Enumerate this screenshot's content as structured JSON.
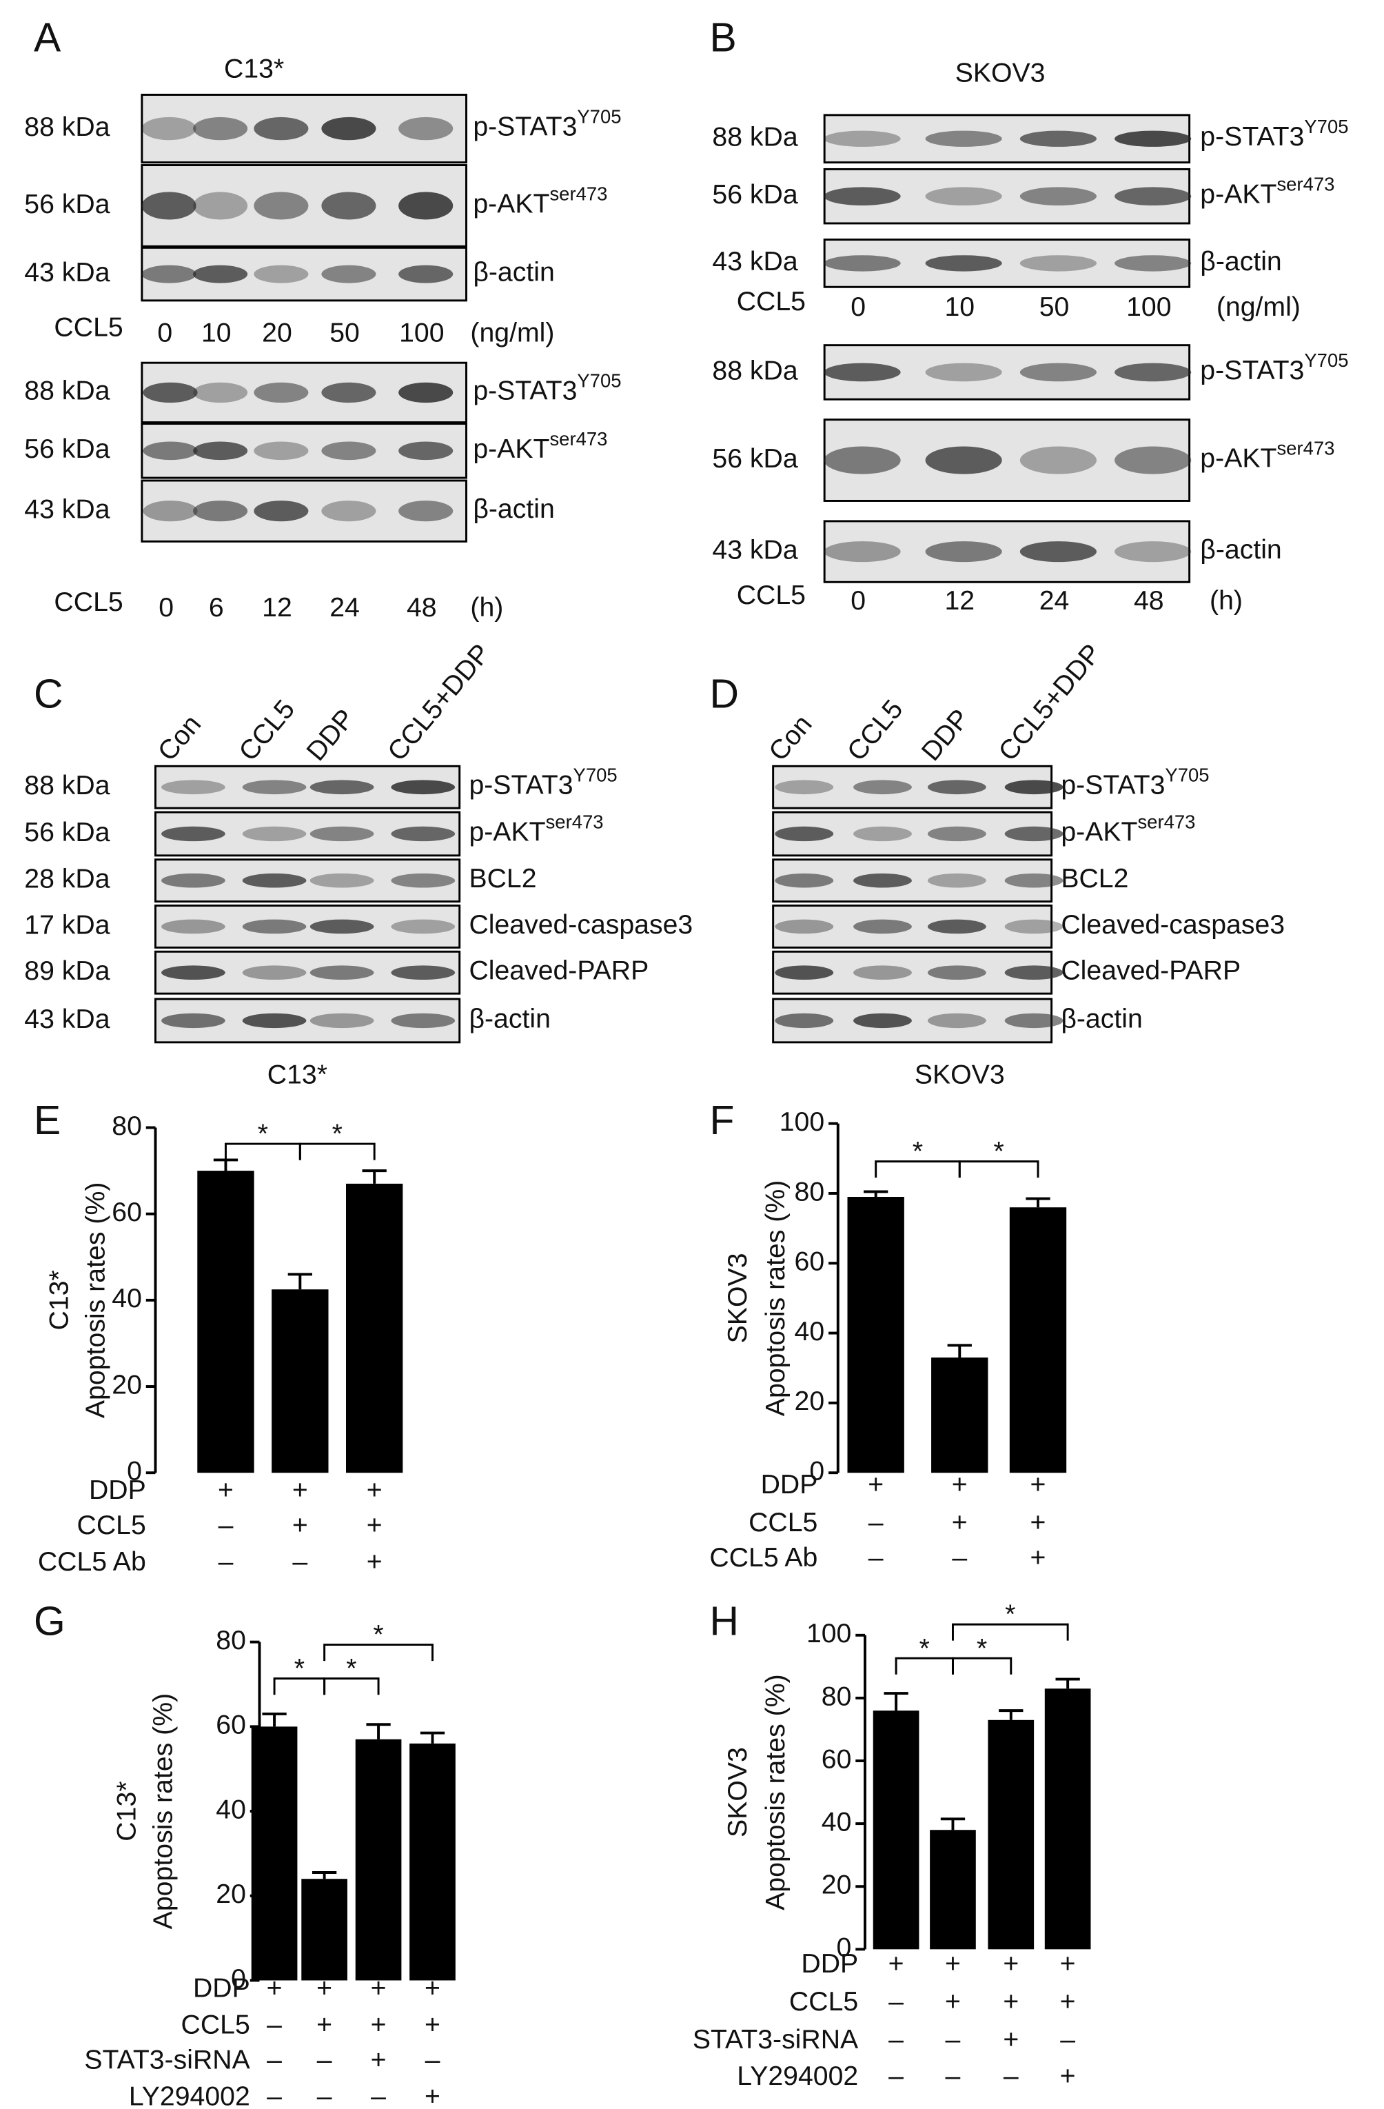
{
  "blots": [
    {
      "letter": "A",
      "title": "C13*",
      "groups": [
        {
          "rows": [
            {
              "kda": "88 kDa",
              "protein": "p-STAT3",
              "sup": "Y705"
            },
            {
              "kda": "56 kDa",
              "protein": "p-AKT",
              "sup": "ser473"
            },
            {
              "kda": "43 kDa",
              "protein": "β-actin"
            }
          ],
          "treatment": "CCL5",
          "lanes": [
            "0",
            "10",
            "20",
            "50",
            "100"
          ],
          "unit": "(ng/ml)"
        },
        {
          "rows": [
            {
              "kda": "88 kDa",
              "protein": "p-STAT3",
              "sup": "Y705"
            },
            {
              "kda": "56 kDa",
              "protein": "p-AKT",
              "sup": "ser473"
            },
            {
              "kda": "43 kDa",
              "protein": "β-actin"
            }
          ],
          "treatment": "CCL5",
          "lanes": [
            "0",
            "6",
            "12",
            "24",
            "48"
          ],
          "unit": "(h)"
        }
      ]
    },
    {
      "letter": "B",
      "title": "SKOV3",
      "groups": [
        {
          "rows": [
            {
              "kda": "88 kDa",
              "protein": "p-STAT3",
              "sup": "Y705"
            },
            {
              "kda": "56 kDa",
              "protein": "p-AKT",
              "sup": "ser473"
            },
            {
              "kda": "43 kDa",
              "protein": "β-actin"
            }
          ],
          "treatment": "CCL5",
          "lanes": [
            "0",
            "10",
            "50",
            "100"
          ],
          "unit": "(ng/ml)"
        },
        {
          "rows": [
            {
              "kda": "88 kDa",
              "protein": "p-STAT3",
              "sup": "Y705"
            },
            {
              "kda": "56 kDa",
              "protein": "p-AKT",
              "sup": "ser473"
            },
            {
              "kda": "43 kDa",
              "protein": "β-actin"
            }
          ],
          "treatment": "CCL5",
          "lanes": [
            "0",
            "12",
            "24",
            "48"
          ],
          "unit": "(h)"
        }
      ]
    },
    {
      "letter": "C",
      "groups": [
        {
          "rows": [
            {
              "kda": "88 kDa",
              "protein": "p-STAT3",
              "sup": "Y705"
            },
            {
              "kda": "56 kDa",
              "protein": "p-AKT",
              "sup": "ser473"
            },
            {
              "kda": "28 kDa",
              "protein": "BCL2"
            },
            {
              "kda": "17 kDa",
              "protein": "Cleaved-caspase3"
            },
            {
              "kda": "89 kDa",
              "protein": "Cleaved-PARP"
            },
            {
              "kda": "43 kDa",
              "protein": "β-actin"
            }
          ],
          "lanes": [
            "Con",
            "CCL5",
            "DDP",
            "CCL5+DDP"
          ]
        }
      ]
    },
    {
      "letter": "D",
      "groups": [
        {
          "rows": [
            {
              "protein": "p-STAT3",
              "sup": "Y705"
            },
            {
              "protein": "p-AKT",
              "sup": "ser473"
            },
            {
              "protein": "BCL2"
            },
            {
              "protein": "Cleaved-caspase3"
            },
            {
              "protein": "Cleaved-PARP"
            },
            {
              "protein": "β-actin"
            }
          ],
          "lanes": [
            "Con",
            "CCL5",
            "DDP",
            "CCL5+DDP"
          ]
        }
      ]
    }
  ],
  "chart_data": [
    {
      "type": "bar",
      "letter": "E",
      "title": "C13*",
      "ylabel": [
        "C13*",
        "Apoptosis rates (%)"
      ],
      "values": [
        70,
        42.5,
        67
      ],
      "errors": [
        2.5,
        3.5,
        3
      ],
      "color": "#000000",
      "ylim": [
        0,
        80
      ],
      "yticks": [
        0,
        20,
        40,
        60,
        80
      ],
      "treatments": [
        {
          "name": "DDP",
          "signs": [
            "+",
            "+",
            "+"
          ]
        },
        {
          "name": "CCL5",
          "signs": [
            "–",
            "+",
            "+"
          ]
        },
        {
          "name": "CCL5 Ab",
          "signs": [
            "–",
            "–",
            "+"
          ]
        }
      ],
      "significance": [
        "*",
        "*"
      ]
    },
    {
      "type": "bar",
      "letter": "F",
      "title": "SKOV3",
      "ylabel": [
        "SKOV3",
        "Apoptosis rates (%)"
      ],
      "values": [
        79,
        33,
        76
      ],
      "errors": [
        1.5,
        3.5,
        2.5
      ],
      "color": "#000000",
      "ylim": [
        0,
        100
      ],
      "yticks": [
        0,
        20,
        40,
        60,
        80,
        100
      ],
      "treatments": [
        {
          "name": "DDP",
          "signs": [
            "+",
            "+",
            "+"
          ]
        },
        {
          "name": "CCL5",
          "signs": [
            "–",
            "+",
            "+"
          ]
        },
        {
          "name": "CCL5 Ab",
          "signs": [
            "–",
            "–",
            "+"
          ]
        }
      ],
      "significance": [
        "*",
        "*"
      ]
    },
    {
      "type": "bar",
      "letter": "G",
      "ylabel": [
        "C13*",
        "Apoptosis rates (%)"
      ],
      "values": [
        60,
        24,
        57,
        56
      ],
      "errors": [
        3,
        1.5,
        3.5,
        2.5
      ],
      "color": "#000000",
      "ylim": [
        0,
        80
      ],
      "yticks": [
        0,
        20,
        40,
        60,
        80
      ],
      "treatments": [
        {
          "name": "DDP",
          "signs": [
            "+",
            "+",
            "+",
            "+"
          ]
        },
        {
          "name": "CCL5",
          "signs": [
            "–",
            "+",
            "+",
            "+"
          ]
        },
        {
          "name": "STAT3-siRNA",
          "signs": [
            "–",
            "–",
            "+",
            "–"
          ]
        },
        {
          "name": "LY294002",
          "signs": [
            "–",
            "–",
            "–",
            "+"
          ]
        }
      ],
      "significance": [
        "*",
        "*",
        "*"
      ]
    },
    {
      "type": "bar",
      "letter": "H",
      "ylabel": [
        "SKOV3",
        "Apoptosis rates (%)"
      ],
      "values": [
        76,
        38,
        73,
        83
      ],
      "errors": [
        5.5,
        3.5,
        3,
        3
      ],
      "color": "#000000",
      "ylim": [
        0,
        100
      ],
      "yticks": [
        0,
        20,
        40,
        60,
        80,
        100
      ],
      "treatments": [
        {
          "name": "DDP",
          "signs": [
            "+",
            "+",
            "+",
            "+"
          ]
        },
        {
          "name": "CCL5",
          "signs": [
            "–",
            "+",
            "+",
            "+"
          ]
        },
        {
          "name": "STAT3-siRNA",
          "signs": [
            "–",
            "–",
            "+",
            "–"
          ]
        },
        {
          "name": "LY294002",
          "signs": [
            "–",
            "–",
            "–",
            "+"
          ]
        }
      ],
      "significance": [
        "*",
        "*",
        "*"
      ]
    }
  ]
}
